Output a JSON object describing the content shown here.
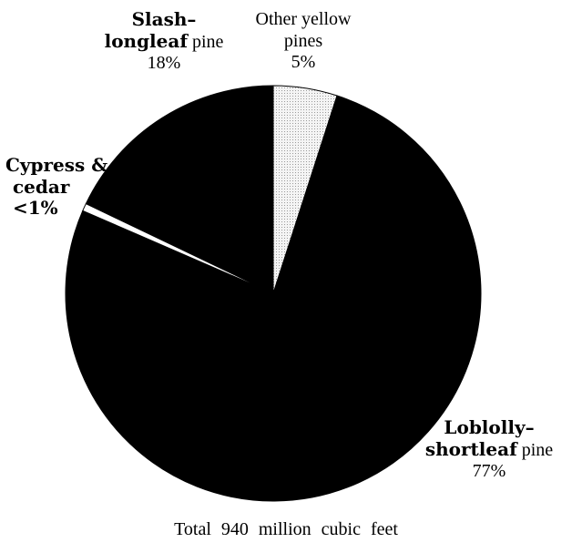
{
  "chart_data": {
    "type": "pie",
    "slices": [
      {
        "name": "Other yellow pines",
        "value": 5,
        "label_pct": "5%",
        "color": "#e3e3e3"
      },
      {
        "name": "Loblolly–shortleaf pine",
        "value": 77,
        "label_pct": "77%",
        "color": "#000000"
      },
      {
        "name": "Cypress & cedar",
        "value": 0.6,
        "label_pct": "<1%",
        "color": "#ffffff"
      },
      {
        "name": "Slash–longleaf pine",
        "value": 18,
        "label_pct": "18%",
        "color": "#000000"
      }
    ],
    "labels": {
      "slash": {
        "bold": "Slash–",
        "line2_bold": "longleaf",
        "line2_reg": " pine",
        "pct": "18%"
      },
      "other": {
        "line1": "Other yellow",
        "line2": "pines",
        "pct": "5%"
      },
      "cypress": {
        "line1": "Cypress &",
        "line2": "cedar",
        "pct": "<1%"
      },
      "loblolly": {
        "line1": "Loblolly–",
        "line2_bold": "shortleaf",
        "line2_reg": " pine",
        "pct": "77%"
      }
    },
    "caption": "Total 940 million cubic feet",
    "start_angle_deg": 0,
    "direction": "clockwise"
  }
}
